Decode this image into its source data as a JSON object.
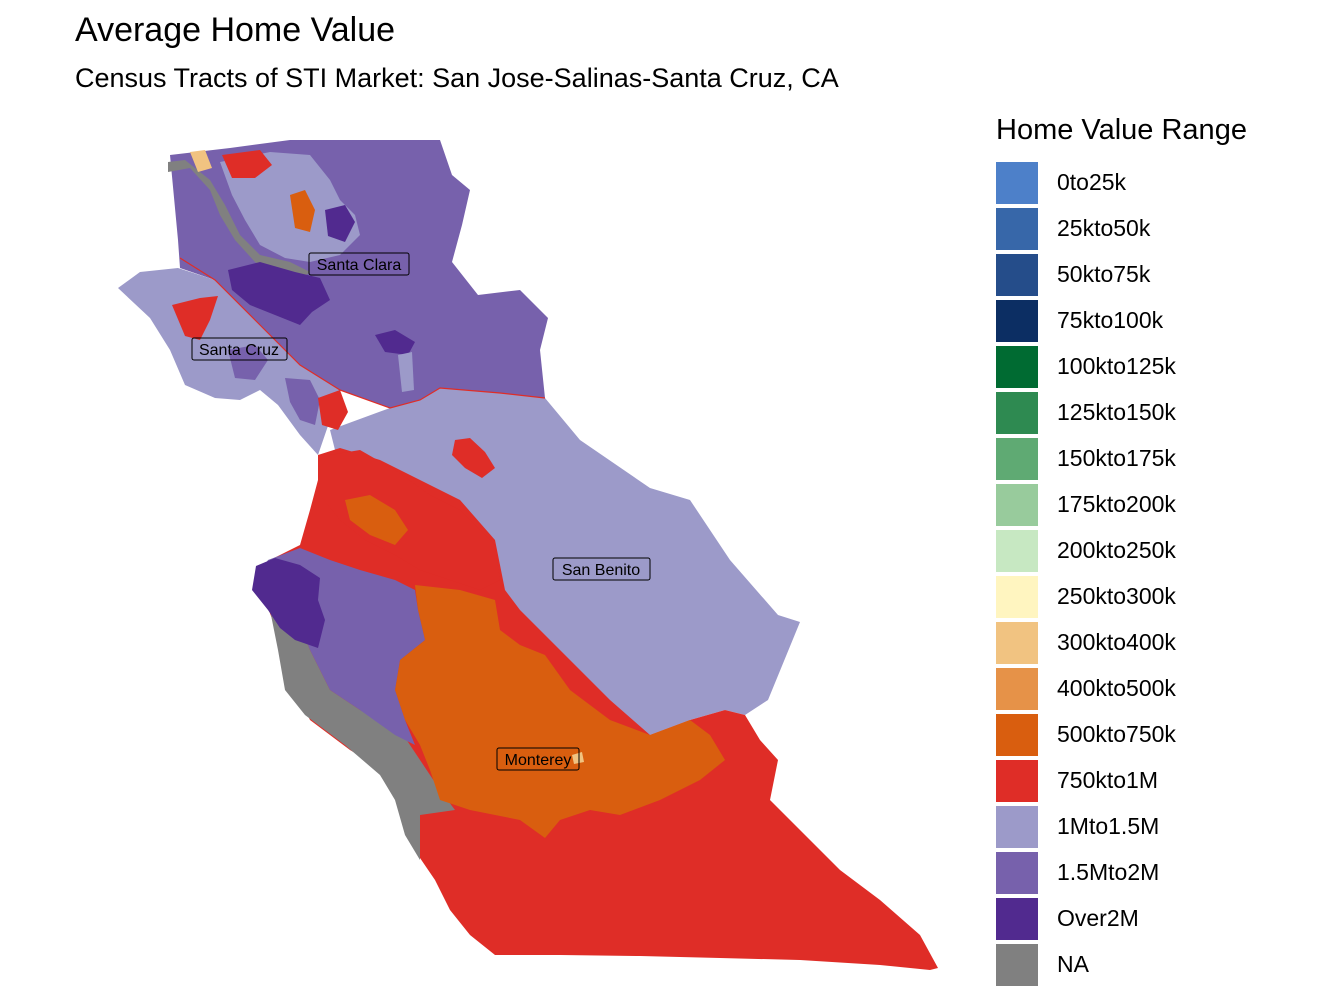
{
  "title": "Average Home Value",
  "subtitle": "Census Tracts of STI Market: San Jose-Salinas-Santa Cruz, CA",
  "legend": {
    "title": "Home Value Range",
    "items": [
      {
        "label": "0to25k",
        "color": "#4D80C9"
      },
      {
        "label": "25kto50k",
        "color": "#3767A9"
      },
      {
        "label": "50kto75k",
        "color": "#254D8A"
      },
      {
        "label": "75kto100k",
        "color": "#0C2E63"
      },
      {
        "label": "100kto125k",
        "color": "#006B32"
      },
      {
        "label": "125kto150k",
        "color": "#2E8A51"
      },
      {
        "label": "150kto175k",
        "color": "#5FAA73"
      },
      {
        "label": "175kto200k",
        "color": "#98CB9C"
      },
      {
        "label": "200kto250k",
        "color": "#C7E8C2"
      },
      {
        "label": "250kto300k",
        "color": "#FFF5C0"
      },
      {
        "label": "300kto400k",
        "color": "#F1C381"
      },
      {
        "label": "400kto500k",
        "color": "#E69248"
      },
      {
        "label": "500kto750k",
        "color": "#D95E0F"
      },
      {
        "label": "750kto1M",
        "color": "#DF2D27"
      },
      {
        "label": "1Mto1.5M",
        "color": "#9C9AC9"
      },
      {
        "label": "1.5Mto2M",
        "color": "#7761AC"
      },
      {
        "label": "Over2M",
        "color": "#512A8F"
      },
      {
        "label": "NA",
        "color": "#808080"
      }
    ]
  },
  "regions": {
    "santa_clara": "Santa Clara",
    "santa_cruz": "Santa Cruz",
    "san_benito": "San Benito",
    "monterey": "Monterey"
  }
}
